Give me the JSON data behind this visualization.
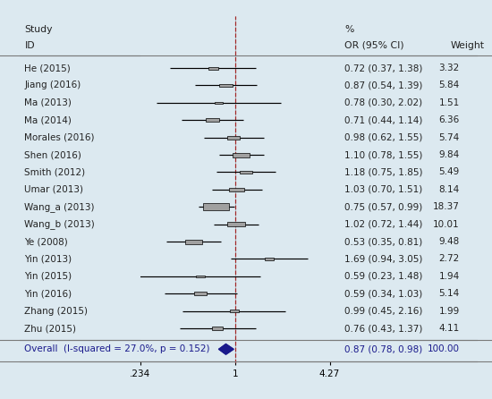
{
  "studies": [
    {
      "id": "He (2015)",
      "or": 0.72,
      "ci_lo": 0.37,
      "ci_hi": 1.38,
      "weight": 3.32
    },
    {
      "id": "Jiang (2016)",
      "or": 0.87,
      "ci_lo": 0.54,
      "ci_hi": 1.39,
      "weight": 5.84
    },
    {
      "id": "Ma (2013)",
      "or": 0.78,
      "ci_lo": 0.3,
      "ci_hi": 2.02,
      "weight": 1.51
    },
    {
      "id": "Ma (2014)",
      "or": 0.71,
      "ci_lo": 0.44,
      "ci_hi": 1.14,
      "weight": 6.36
    },
    {
      "id": "Morales (2016)",
      "or": 0.98,
      "ci_lo": 0.62,
      "ci_hi": 1.55,
      "weight": 5.74
    },
    {
      "id": "Shen (2016)",
      "or": 1.1,
      "ci_lo": 0.78,
      "ci_hi": 1.55,
      "weight": 9.84
    },
    {
      "id": "Smith (2012)",
      "or": 1.18,
      "ci_lo": 0.75,
      "ci_hi": 1.85,
      "weight": 5.49
    },
    {
      "id": "Umar (2013)",
      "or": 1.03,
      "ci_lo": 0.7,
      "ci_hi": 1.51,
      "weight": 8.14
    },
    {
      "id": "Wang_a (2013)",
      "or": 0.75,
      "ci_lo": 0.57,
      "ci_hi": 0.99,
      "weight": 18.37
    },
    {
      "id": "Wang_b (2013)",
      "or": 1.02,
      "ci_lo": 0.72,
      "ci_hi": 1.44,
      "weight": 10.01
    },
    {
      "id": "Ye (2008)",
      "or": 0.53,
      "ci_lo": 0.35,
      "ci_hi": 0.81,
      "weight": 9.48
    },
    {
      "id": "Yin (2013)",
      "or": 1.69,
      "ci_lo": 0.94,
      "ci_hi": 3.05,
      "weight": 2.72
    },
    {
      "id": "Yin (2015)",
      "or": 0.59,
      "ci_lo": 0.23,
      "ci_hi": 1.48,
      "weight": 1.94
    },
    {
      "id": "Yin (2016)",
      "or": 0.59,
      "ci_lo": 0.34,
      "ci_hi": 1.03,
      "weight": 5.14
    },
    {
      "id": "Zhang (2015)",
      "or": 0.99,
      "ci_lo": 0.45,
      "ci_hi": 2.16,
      "weight": 1.99
    },
    {
      "id": "Zhu (2015)",
      "or": 0.76,
      "ci_lo": 0.43,
      "ci_hi": 1.37,
      "weight": 4.11
    }
  ],
  "overall": {
    "or": 0.87,
    "ci_lo": 0.78,
    "ci_hi": 0.98,
    "weight": 100.0,
    "label": "Overall  (I-squared = 27.0%, p = 0.152)"
  },
  "xmin": 0.234,
  "xmax": 4.27,
  "xtick_labels": [
    ".234",
    "1",
    "4.27"
  ],
  "bg_color": "#dce9f0",
  "plot_bg": "#ffffff",
  "border_color": "#7a7a7a",
  "dashed_line_color": "#cc3333",
  "overall_diamond_color": "#1a1a8c",
  "text_color": "#222222",
  "overall_text_color": "#1a1a8c",
  "box_color": "#a0a0a0"
}
